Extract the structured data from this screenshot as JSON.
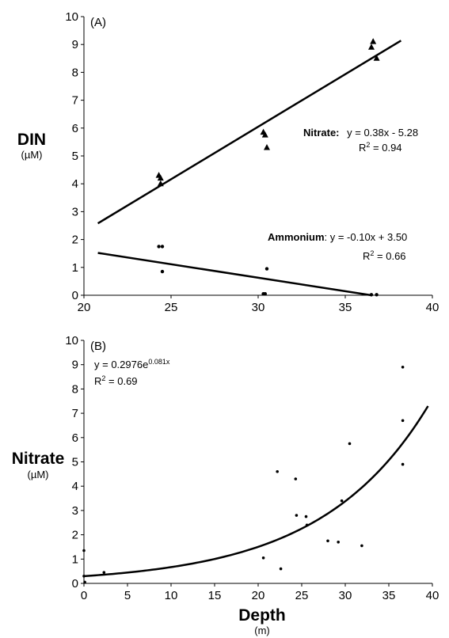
{
  "chart_data": [
    {
      "type": "scatter",
      "panel_label": "(A)",
      "ylabel": "DIN",
      "ylabel_unit": "(µM)",
      "xlim": [
        20,
        40
      ],
      "ylim": [
        0,
        10
      ],
      "x_ticks": [
        "20",
        "25",
        "30",
        "35",
        "40"
      ],
      "y_ticks": [
        "0",
        "1",
        "2",
        "3",
        "4",
        "5",
        "6",
        "7",
        "8",
        "9",
        "10"
      ],
      "grid": false,
      "series": [
        {
          "name": "Nitrate",
          "marker": "triangle",
          "points": [
            [
              24.3,
              4.3
            ],
            [
              24.4,
              4.2
            ],
            [
              24.4,
              4.0
            ],
            [
              30.3,
              5.85
            ],
            [
              30.4,
              5.75
            ],
            [
              30.5,
              5.3
            ],
            [
              36.5,
              8.9
            ],
            [
              36.6,
              9.1
            ],
            [
              36.8,
              8.5
            ]
          ],
          "fit": {
            "x": [
              20.8,
              38.2
            ],
            "y": [
              2.58,
              9.14
            ],
            "equation": "y = 0.38x - 5.28",
            "r2": "R² = 0.94"
          }
        },
        {
          "name": "Ammonium",
          "marker": "circle",
          "points": [
            [
              24.3,
              1.75
            ],
            [
              24.5,
              1.75
            ],
            [
              24.5,
              0.85
            ],
            [
              30.3,
              0.05
            ],
            [
              30.4,
              0.05
            ],
            [
              30.5,
              0.95
            ],
            [
              36.5,
              0.02
            ],
            [
              36.8,
              0.02
            ]
          ],
          "fit": {
            "x": [
              20.8,
              36.5
            ],
            "y": [
              1.52,
              0.0
            ],
            "equation": "y = -0.10x + 3.50",
            "r2": "R² = 0.66"
          }
        }
      ],
      "annotations": {
        "nitrate_label": "Nitrate:",
        "nitrate_eq": "y = 0.38x - 5.28",
        "nitrate_r2_base": "R",
        "nitrate_r2_rest": " = 0.94",
        "ammonium_label": "Ammonium",
        "ammonium_eq": ": y = -0.10x + 3.50",
        "ammonium_r2_base": "R",
        "ammonium_r2_rest": " = 0.66",
        "r2_sup": "2"
      }
    },
    {
      "type": "scatter",
      "panel_label": "(B)",
      "ylabel": "Nitrate",
      "ylabel_unit": "(µM)",
      "xlabel": "Depth",
      "xlabel_unit": "(m)",
      "xlim": [
        0,
        40
      ],
      "ylim": [
        0,
        10
      ],
      "x_ticks": [
        "0",
        "5",
        "10",
        "15",
        "20",
        "25",
        "30",
        "35",
        "40"
      ],
      "y_ticks": [
        "0",
        "1",
        "2",
        "3",
        "4",
        "5",
        "6",
        "7",
        "8",
        "9",
        "10"
      ],
      "grid": false,
      "points": [
        [
          0.0,
          1.35
        ],
        [
          0.0,
          0.3
        ],
        [
          0.1,
          0.05
        ],
        [
          2.3,
          0.45
        ],
        [
          20.6,
          1.05
        ],
        [
          22.2,
          4.6
        ],
        [
          22.6,
          0.6
        ],
        [
          24.3,
          4.3
        ],
        [
          24.4,
          2.8
        ],
        [
          25.5,
          2.75
        ],
        [
          25.6,
          2.4
        ],
        [
          28.0,
          1.75
        ],
        [
          29.2,
          1.7
        ],
        [
          29.6,
          3.4
        ],
        [
          30.5,
          5.75
        ],
        [
          31.9,
          1.55
        ],
        [
          36.6,
          8.9
        ],
        [
          36.6,
          6.7
        ],
        [
          36.6,
          4.9
        ]
      ],
      "fit": {
        "type": "exponential",
        "a": 0.2976,
        "b": 0.081,
        "xrange": [
          0,
          39.5
        ]
      },
      "annotations": {
        "eq_base": "y = 0.2976e",
        "eq_exp": "0.081x",
        "r2_base": "R",
        "r2_sup": "2",
        "r2_rest": " = 0.69"
      }
    }
  ]
}
